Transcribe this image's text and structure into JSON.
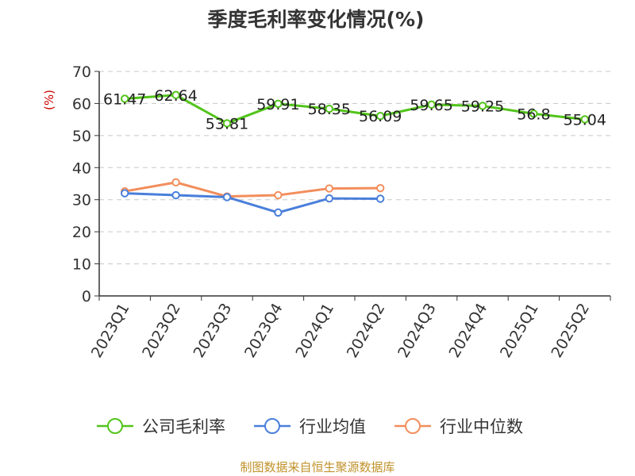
{
  "chart_data": {
    "type": "line",
    "title": "季度毛利率变化情况(%)",
    "ylabel": "(%)",
    "ylim": [
      0,
      70
    ],
    "yticks": [
      0,
      10,
      20,
      30,
      40,
      50,
      60,
      70
    ],
    "grid": true,
    "categories": [
      "2023Q1",
      "2023Q2",
      "2023Q3",
      "2023Q4",
      "2024Q1",
      "2024Q2",
      "2024Q3",
      "2024Q4",
      "2025Q1",
      "2025Q2"
    ],
    "series": [
      {
        "name": "公司毛利率",
        "color": "#52c41a",
        "show_labels": true,
        "values": [
          61.47,
          62.64,
          53.81,
          59.91,
          58.35,
          56.09,
          59.65,
          59.25,
          56.8,
          55.04
        ],
        "labels": [
          "61.47",
          "62.64",
          "53.81",
          "59.91",
          "58.35",
          "56.09",
          "59.65",
          "59.25",
          "56.8",
          "55.04"
        ]
      },
      {
        "name": "行业均值",
        "color": "#4a7fdb",
        "show_labels": false,
        "values": [
          32.0,
          31.4,
          30.8,
          26.0,
          30.4,
          30.3,
          null,
          null,
          null,
          null
        ]
      },
      {
        "name": "行业中位数",
        "color": "#f28e5c",
        "show_labels": false,
        "values": [
          32.6,
          35.4,
          31.0,
          31.4,
          33.5,
          33.6,
          null,
          null,
          null,
          null
        ]
      }
    ],
    "legend_position": "bottom",
    "source": "制图数据来自恒生聚源数据库"
  }
}
